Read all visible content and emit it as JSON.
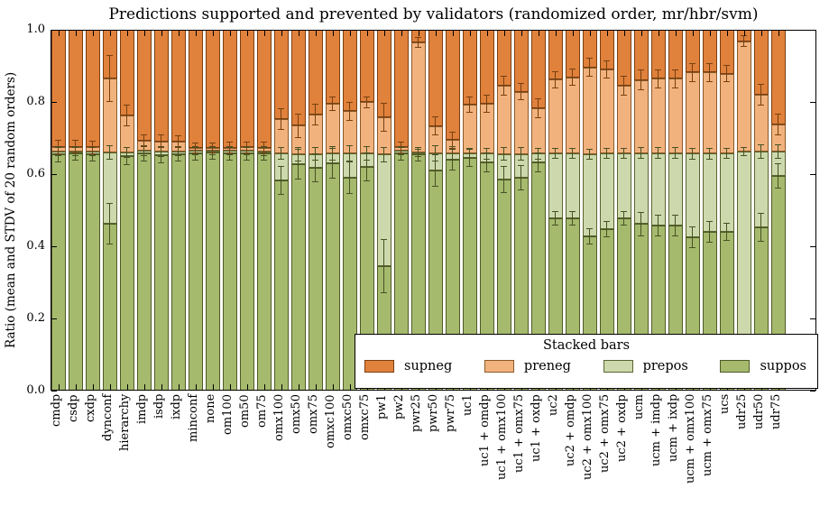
{
  "chart_data": {
    "type": "bar",
    "stacked": true,
    "title": "Predictions supported and prevented by validators (randomized order, mr/hbr/svm)",
    "ylabel": "Ratio (mean and STDV of 20 random orders)",
    "ylim": [
      0.0,
      1.0
    ],
    "yticks": [
      "0.0",
      "0.2",
      "0.4",
      "0.6",
      "0.8",
      "1.0"
    ],
    "grid": false,
    "series_order_bottom_to_top": [
      "suppos",
      "prepos",
      "preneg",
      "supneg"
    ],
    "series_colors": {
      "supneg": "#e0813c",
      "preneg": "#f2b27e",
      "prepos": "#cdd9ad",
      "suppos": "#a6ba6e"
    },
    "series_edge_colors": {
      "supneg": "#7a3f10",
      "preneg": "#8a5a28",
      "prepos": "#5a6430",
      "suppos": "#4e5a26"
    },
    "error_bar_colors": {
      "green_boundaries": "#475222",
      "orange_boundary": "#77410f"
    },
    "legend": {
      "title": "Stacked bars",
      "position": "lower right",
      "entries": [
        "supneg",
        "preneg",
        "prepos",
        "suppos"
      ]
    },
    "bars_note": "cum = cumulative tops of [suppos, prepos, preneg]; supneg fills up to 1.0; err = STDV at each boundary",
    "bars": [
      {
        "label": "cmdp",
        "cum": [
          0.655,
          0.662,
          0.675
        ],
        "err": [
          0.022,
          0.012,
          0.02
        ]
      },
      {
        "label": "csdp",
        "cum": [
          0.657,
          0.663,
          0.676
        ],
        "err": [
          0.02,
          0.012,
          0.018
        ]
      },
      {
        "label": "cxdp",
        "cum": [
          0.656,
          0.663,
          0.674
        ],
        "err": [
          0.02,
          0.012,
          0.018
        ]
      },
      {
        "label": "dynconf",
        "cum": [
          0.462,
          0.659,
          0.865
        ],
        "err": [
          0.058,
          0.02,
          0.065
        ]
      },
      {
        "label": "hierarchy",
        "cum": [
          0.65,
          0.661,
          0.762
        ],
        "err": [
          0.025,
          0.015,
          0.03
        ]
      },
      {
        "label": "imdp",
        "cum": [
          0.658,
          0.665,
          0.692
        ],
        "err": [
          0.022,
          0.015,
          0.018
        ]
      },
      {
        "label": "isdp",
        "cum": [
          0.653,
          0.662,
          0.691
        ],
        "err": [
          0.022,
          0.015,
          0.018
        ]
      },
      {
        "label": "ixdp",
        "cum": [
          0.655,
          0.663,
          0.69
        ],
        "err": [
          0.02,
          0.014,
          0.018
        ]
      },
      {
        "label": "minconf",
        "cum": [
          0.658,
          0.664,
          0.672
        ],
        "err": [
          0.02,
          0.012,
          0.015
        ]
      },
      {
        "label": "none",
        "cum": [
          0.659,
          0.664,
          0.672
        ],
        "err": [
          0.018,
          0.012,
          0.015
        ]
      },
      {
        "label": "om100",
        "cum": [
          0.658,
          0.664,
          0.673
        ],
        "err": [
          0.02,
          0.012,
          0.016
        ]
      },
      {
        "label": "om50",
        "cum": [
          0.658,
          0.664,
          0.674
        ],
        "err": [
          0.02,
          0.012,
          0.016
        ]
      },
      {
        "label": "om75",
        "cum": [
          0.657,
          0.663,
          0.673
        ],
        "err": [
          0.02,
          0.012,
          0.016
        ]
      },
      {
        "label": "omx100",
        "cum": [
          0.583,
          0.657,
          0.753
        ],
        "err": [
          0.04,
          0.018,
          0.03
        ]
      },
      {
        "label": "omx50",
        "cum": [
          0.628,
          0.656,
          0.734
        ],
        "err": [
          0.042,
          0.02,
          0.034
        ]
      },
      {
        "label": "omx75",
        "cum": [
          0.618,
          0.656,
          0.765
        ],
        "err": [
          0.04,
          0.018,
          0.03
        ]
      },
      {
        "label": "omxc100",
        "cum": [
          0.63,
          0.658,
          0.795
        ],
        "err": [
          0.042,
          0.02,
          0.02
        ]
      },
      {
        "label": "omxc50",
        "cum": [
          0.59,
          0.657,
          0.774
        ],
        "err": [
          0.045,
          0.022,
          0.026
        ]
      },
      {
        "label": "omxc75",
        "cum": [
          0.62,
          0.657,
          0.799
        ],
        "err": [
          0.04,
          0.02,
          0.016
        ]
      },
      {
        "label": "pw1",
        "cum": [
          0.345,
          0.654,
          0.757
        ],
        "err": [
          0.076,
          0.022,
          0.04
        ]
      },
      {
        "label": "pw2",
        "cum": [
          0.658,
          0.664,
          0.674
        ],
        "err": [
          0.02,
          0.012,
          0.016
        ]
      },
      {
        "label": "pwr25",
        "cum": [
          0.654,
          0.659,
          0.965
        ],
        "err": [
          0.02,
          0.012,
          0.016
        ]
      },
      {
        "label": "pwr50",
        "cum": [
          0.61,
          0.657,
          0.733
        ],
        "err": [
          0.045,
          0.022,
          0.026
        ]
      },
      {
        "label": "pwr75",
        "cum": [
          0.64,
          0.657,
          0.694
        ],
        "err": [
          0.03,
          0.02,
          0.024
        ]
      },
      {
        "label": "uc1",
        "cum": [
          0.645,
          0.658,
          0.792
        ],
        "err": [
          0.024,
          0.015,
          0.022
        ]
      },
      {
        "label": "uc1 + omdp",
        "cum": [
          0.632,
          0.657,
          0.794
        ],
        "err": [
          0.028,
          0.016,
          0.025
        ]
      },
      {
        "label": "uc1 + omx100",
        "cum": [
          0.585,
          0.656,
          0.845
        ],
        "err": [
          0.038,
          0.018,
          0.028
        ]
      },
      {
        "label": "uc1 + omx75",
        "cum": [
          0.59,
          0.656,
          0.828
        ],
        "err": [
          0.035,
          0.018,
          0.024
        ]
      },
      {
        "label": "uc1 + oxdp",
        "cum": [
          0.632,
          0.657,
          0.783
        ],
        "err": [
          0.028,
          0.016,
          0.028
        ]
      },
      {
        "label": "uc2",
        "cum": [
          0.478,
          0.657,
          0.862
        ],
        "err": [
          0.02,
          0.015,
          0.024
        ]
      },
      {
        "label": "uc2 + omdp",
        "cum": [
          0.478,
          0.657,
          0.868
        ],
        "err": [
          0.02,
          0.015,
          0.024
        ]
      },
      {
        "label": "uc2 + omx100",
        "cum": [
          0.428,
          0.656,
          0.896
        ],
        "err": [
          0.022,
          0.015,
          0.026
        ]
      },
      {
        "label": "uc2 + omx75",
        "cum": [
          0.448,
          0.657,
          0.89
        ],
        "err": [
          0.022,
          0.015,
          0.024
        ]
      },
      {
        "label": "uc2 + oxdp",
        "cum": [
          0.478,
          0.657,
          0.845
        ],
        "err": [
          0.02,
          0.015,
          0.028
        ]
      },
      {
        "label": "ucm",
        "cum": [
          0.462,
          0.658,
          0.861
        ],
        "err": [
          0.034,
          0.016,
          0.028
        ]
      },
      {
        "label": "ucm + imdp",
        "cum": [
          0.458,
          0.658,
          0.864
        ],
        "err": [
          0.03,
          0.016,
          0.026
        ]
      },
      {
        "label": "ucm + ixdp",
        "cum": [
          0.458,
          0.658,
          0.864
        ],
        "err": [
          0.03,
          0.016,
          0.026
        ]
      },
      {
        "label": "ucm + omx100",
        "cum": [
          0.425,
          0.657,
          0.882
        ],
        "err": [
          0.03,
          0.016,
          0.026
        ]
      },
      {
        "label": "ucm + omx75",
        "cum": [
          0.44,
          0.657,
          0.882
        ],
        "err": [
          0.03,
          0.016,
          0.026
        ]
      },
      {
        "label": "ucs",
        "cum": [
          0.44,
          0.658,
          0.878
        ],
        "err": [
          0.026,
          0.015,
          0.024
        ]
      },
      {
        "label": "udr25",
        "cum": [
          0.12,
          0.662,
          0.968
        ],
        "err": [
          0.02,
          0.012,
          0.016
        ]
      },
      {
        "label": "udr50",
        "cum": [
          0.452,
          0.662,
          0.82
        ],
        "err": [
          0.04,
          0.02,
          0.031
        ]
      },
      {
        "label": "udr75",
        "cum": [
          0.595,
          0.662,
          0.737
        ],
        "err": [
          0.035,
          0.02,
          0.03
        ]
      }
    ]
  }
}
